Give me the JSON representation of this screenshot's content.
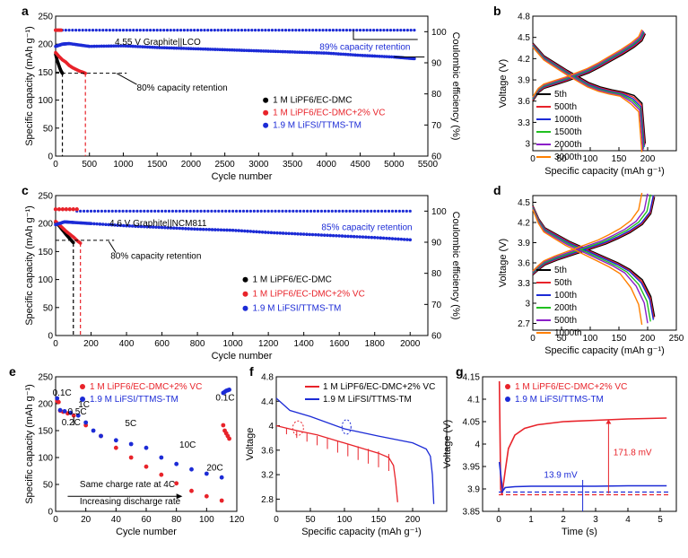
{
  "colors": {
    "black": "#000000",
    "red": "#e8232a",
    "blue": "#1c2bd6",
    "green": "#20c020",
    "purple": "#8b1fc8",
    "orange": "#ff8000"
  },
  "chart_data": [
    {
      "id": "a",
      "panel_label": "a",
      "type": "scatter",
      "title": "4.55 V Graphite||LCO",
      "xlabel": "Cycle number",
      "ylabel": "Specific capacity (mAh g⁻¹)",
      "y2label": "Coulombic efficiency (%)",
      "xlim": [
        0,
        5500
      ],
      "ylim": [
        0,
        250
      ],
      "y2lim": [
        60,
        105
      ],
      "xticks": [
        0,
        500,
        1000,
        1500,
        2000,
        2500,
        3000,
        3500,
        4000,
        4500,
        5000,
        5500
      ],
      "yticks": [
        0,
        50,
        100,
        150,
        200,
        250
      ],
      "y2ticks": [
        60,
        70,
        80,
        90,
        100
      ],
      "legend": [
        "1 M LiPF6/EC-DMC",
        "1 M LiPF6/EC-DMC+2% VC",
        "1.9 M LiFSI/TTMS-TM"
      ],
      "annotations": {
        "retention_high": "89% capacity retention",
        "retention_low": "80% capacity retention"
      },
      "series": [
        {
          "name": "1 M LiPF6/EC-DMC",
          "color": "#000000",
          "x": [
            0,
            20,
            40,
            60,
            80,
            100
          ],
          "y": [
            182,
            172,
            165,
            158,
            152,
            148
          ],
          "eol": 100
        },
        {
          "name": "1 M LiPF6/EC-DMC+2% VC",
          "color": "#e8232a",
          "x": [
            0,
            50,
            100,
            150,
            200,
            250,
            300,
            350,
            400,
            440
          ],
          "y": [
            185,
            178,
            172,
            168,
            162,
            158,
            155,
            152,
            150,
            148
          ],
          "eol": 440
        },
        {
          "name": "1.9 M LiFSI/TTMS-TM",
          "color": "#1c2bd6",
          "x": [
            0,
            100,
            200,
            500,
            1000,
            1500,
            2000,
            2500,
            3000,
            3500,
            4000,
            4500,
            5000,
            5300
          ],
          "y": [
            196,
            200,
            201,
            196,
            197,
            194,
            192,
            190,
            188,
            186,
            184,
            180,
            177,
            174
          ]
        }
      ],
      "ce_level": 100.5
    },
    {
      "id": "b",
      "panel_label": "b",
      "type": "line",
      "xlabel": "Specific capacity (mAh g⁻¹)",
      "ylabel": "Voltage (V)",
      "xlim": [
        0,
        250
      ],
      "ylim": [
        2.9,
        4.8
      ],
      "xticks": [
        0,
        50,
        100,
        150,
        200
      ],
      "yticks": [
        3.0,
        3.3,
        3.6,
        3.9,
        4.2,
        4.5,
        4.8
      ],
      "legend": [
        "5th",
        "500th",
        "1000th",
        "1500th",
        "2000th",
        "3000th"
      ],
      "capacities": [
        196,
        195,
        194,
        193,
        192,
        190
      ],
      "series_colors": [
        "#000000",
        "#e8232a",
        "#1c2bd6",
        "#20c020",
        "#8b1fc8",
        "#ff8000"
      ],
      "charge_v": [
        3.6,
        3.72,
        3.78,
        3.83,
        3.88,
        3.94,
        4.0,
        4.08,
        4.17,
        4.26,
        4.36,
        4.45,
        4.55
      ],
      "discharge_v": [
        4.42,
        4.33,
        4.24,
        4.14,
        4.04,
        3.95,
        3.86,
        3.8,
        3.76,
        3.73,
        3.68,
        3.57,
        3.0
      ]
    },
    {
      "id": "c",
      "panel_label": "c",
      "type": "scatter",
      "title": "4.6 V Graphite||NCM811",
      "xlabel": "Cycle number",
      "ylabel": "Specific capacity (mAh g⁻¹)",
      "y2label": "Coulombic efficiency (%)",
      "xlim": [
        0,
        2100
      ],
      "ylim": [
        0,
        250
      ],
      "y2lim": [
        60,
        105
      ],
      "xticks": [
        0,
        200,
        400,
        600,
        800,
        1000,
        1200,
        1400,
        1600,
        1800,
        2000
      ],
      "yticks": [
        0,
        50,
        100,
        150,
        200,
        250
      ],
      "y2ticks": [
        60,
        70,
        80,
        90,
        100
      ],
      "legend": [
        "1 M LiPF6/EC-DMC",
        "1 M LiPF6/EC-DMC+2% VC",
        "1.9 M LiFSI/TTMS-TM"
      ],
      "annotations": {
        "retention_high": "85% capacity retention",
        "retention_low": "80% capacity retention"
      },
      "series": [
        {
          "name": "1 M LiPF6/EC-DMC",
          "color": "#000000",
          "x": [
            0,
            20,
            40,
            60,
            80,
            100
          ],
          "y": [
            202,
            196,
            188,
            180,
            173,
            166
          ],
          "eol": 100
        },
        {
          "name": "1 M LiPF6/EC-DMC+2% VC",
          "color": "#e8232a",
          "x": [
            0,
            20,
            40,
            60,
            80,
            100,
            120,
            140
          ],
          "y": [
            204,
            198,
            192,
            186,
            181,
            176,
            170,
            165
          ],
          "eol": 140
        },
        {
          "name": "1.9 M LiFSI/TTMS-TM",
          "color": "#1c2bd6",
          "x": [
            0,
            50,
            100,
            200,
            400,
            600,
            800,
            1000,
            1200,
            1400,
            1600,
            1800,
            2000
          ],
          "y": [
            198,
            203,
            202,
            200,
            196,
            193,
            190,
            188,
            184,
            181,
            178,
            175,
            171
          ]
        }
      ],
      "ce_level": 100
    },
    {
      "id": "d",
      "panel_label": "d",
      "type": "line",
      "xlabel": "Specific capacity (mAh g⁻¹)",
      "ylabel": "Voltage (V)",
      "xlim": [
        0,
        250
      ],
      "ylim": [
        2.6,
        4.6
      ],
      "xticks": [
        0,
        50,
        100,
        150,
        200,
        250
      ],
      "yticks": [
        2.7,
        3.0,
        3.3,
        3.6,
        3.9,
        4.2,
        4.5
      ],
      "legend": [
        "5th",
        "50th",
        "100th",
        "200th",
        "500th",
        "1000th"
      ],
      "capacities": [
        212,
        211,
        210,
        205,
        200,
        190
      ],
      "series_colors": [
        "#000000",
        "#e8232a",
        "#1c2bd6",
        "#20c020",
        "#8b1fc8",
        "#ff8000"
      ],
      "charge_v": [
        3.42,
        3.5,
        3.57,
        3.64,
        3.7,
        3.76,
        3.82,
        3.88,
        3.96,
        4.05,
        4.17,
        4.33,
        4.58
      ],
      "discharge_v": [
        4.45,
        4.25,
        4.12,
        4.02,
        3.92,
        3.84,
        3.76,
        3.68,
        3.6,
        3.5,
        3.35,
        3.1,
        2.8
      ]
    },
    {
      "id": "e",
      "panel_label": "e",
      "type": "scatter",
      "xlabel": "Cycle number",
      "ylabel": "Specific capacity (mAh g⁻¹)",
      "xlim": [
        0,
        120
      ],
      "ylim": [
        0,
        250
      ],
      "xticks": [
        0,
        20,
        40,
        60,
        80,
        100,
        120
      ],
      "yticks": [
        0,
        50,
        100,
        150,
        200,
        250
      ],
      "legend": [
        "1 M LiPF6/EC-DMC+2% VC",
        "1.9 M LiFSI/TTMS-TM"
      ],
      "rate_labels": [
        "0.1C",
        "1C",
        "0.5C",
        "0.2C",
        "5C",
        "10C",
        "20C",
        "0.1C"
      ],
      "notes": [
        "Same charge rate at 4C",
        "Increasing discharge rate"
      ],
      "series": [
        {
          "name": "1 M LiPF6/EC-DMC+2% VC",
          "color": "#e8232a",
          "x": [
            1,
            2,
            3,
            5,
            8,
            12,
            20,
            30,
            40,
            50,
            60,
            70,
            80,
            90,
            100,
            110,
            111,
            112,
            113,
            114,
            115
          ],
          "y": [
            205,
            203,
            187,
            185,
            182,
            178,
            160,
            140,
            118,
            100,
            83,
            68,
            52,
            38,
            28,
            20,
            160,
            150,
            145,
            140,
            135
          ]
        },
        {
          "name": "1.9 M LiFSI/TTMS-TM",
          "color": "#1c2bd6",
          "x": [
            1,
            3,
            6,
            10,
            15,
            20,
            25,
            30,
            40,
            50,
            60,
            70,
            80,
            90,
            100,
            110,
            111,
            112,
            113,
            114,
            115
          ],
          "y": [
            210,
            188,
            186,
            183,
            178,
            165,
            150,
            140,
            132,
            125,
            118,
            100,
            88,
            78,
            70,
            63,
            220,
            222,
            224,
            225,
            226
          ]
        }
      ]
    },
    {
      "id": "f",
      "panel_label": "f",
      "type": "line",
      "xlabel": "Specific capacity (mAh g⁻¹)",
      "ylabel": "Voltage",
      "xlim": [
        0,
        250
      ],
      "ylim": [
        2.6,
        4.8
      ],
      "xticks": [
        0,
        50,
        100,
        150,
        200
      ],
      "yticks": [
        2.8,
        3.2,
        3.6,
        4.0,
        4.4,
        4.8
      ],
      "legend": [
        "1 M LiPF6/EC-DMC+2% VC",
        "1.9 M LiFSI/TTMS-TM"
      ],
      "series": [
        {
          "name": "1 M LiPF6/EC-DMC+2% VC",
          "color": "#e8232a",
          "x": [
            0,
            30,
            60,
            90,
            120,
            150,
            165,
            172,
            175,
            178
          ],
          "y": [
            4.0,
            3.92,
            3.85,
            3.75,
            3.65,
            3.55,
            3.48,
            3.35,
            3.1,
            2.75
          ]
        },
        {
          "name": "1.9 M LiFSI/TTMS-TM",
          "color": "#1c2bd6",
          "x": [
            0,
            20,
            50,
            100,
            150,
            200,
            220,
            226,
            229,
            231
          ],
          "y": [
            4.45,
            4.25,
            4.15,
            3.95,
            3.83,
            3.72,
            3.62,
            3.5,
            3.2,
            2.72
          ]
        }
      ]
    },
    {
      "id": "g",
      "panel_label": "g",
      "type": "line",
      "xlabel": "Time (s)",
      "ylabel": "Voltage (V)",
      "xlim": [
        -0.5,
        5.5
      ],
      "ylim": [
        3.85,
        4.15
      ],
      "xticks": [
        0,
        1,
        2,
        3,
        4,
        5
      ],
      "yticks": [
        3.85,
        3.9,
        3.95,
        4.0,
        4.05,
        4.1,
        4.15
      ],
      "legend": [
        "1 M LiPF6/EC-DMC+2% VC",
        "1.9 M LiFSI/TTMS-TM"
      ],
      "annotations": {
        "red_delta": "171.8 mV",
        "blue_delta": "13.9 mV"
      },
      "series": [
        {
          "name": "1 M LiPF6/EC-DMC+2% VC",
          "color": "#e8232a",
          "x": [
            0.02,
            0.06,
            0.1,
            0.2,
            0.3,
            0.5,
            0.8,
            1.2,
            2,
            3,
            4,
            5.2
          ],
          "y": [
            4.14,
            3.9,
            3.887,
            3.94,
            3.99,
            4.02,
            4.035,
            4.043,
            4.05,
            4.053,
            4.056,
            4.058
          ]
        },
        {
          "name": "1.9 M LiFSI/TTMS-TM",
          "color": "#1c2bd6",
          "x": [
            0.02,
            0.08,
            0.12,
            0.2,
            0.5,
            1,
            2,
            3,
            4,
            5.2
          ],
          "y": [
            3.96,
            3.92,
            3.895,
            3.903,
            3.905,
            3.906,
            3.906,
            3.906,
            3.907,
            3.907
          ]
        }
      ],
      "baselines": {
        "red": 3.887,
        "blue": 3.893
      }
    }
  ]
}
